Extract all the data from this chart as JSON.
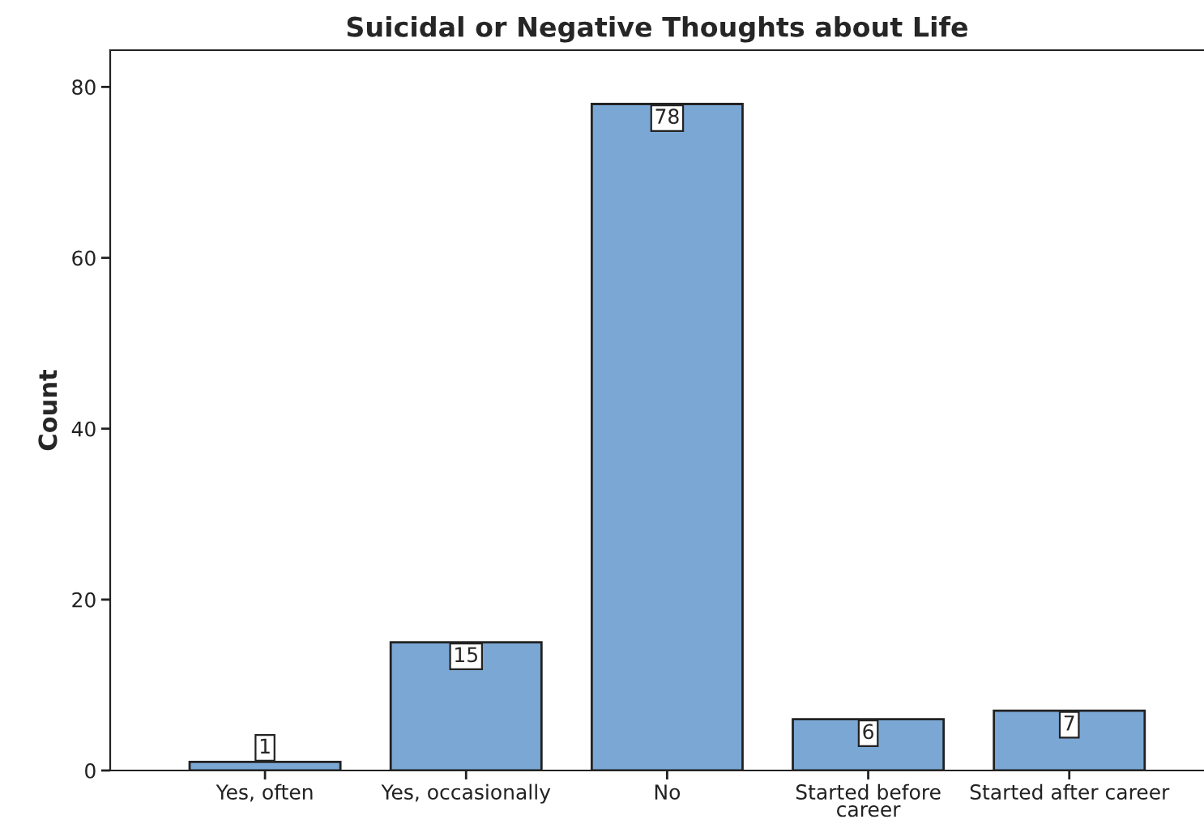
{
  "chart_data": {
    "type": "bar",
    "title": "Suicidal or Negative Thoughts about Life",
    "ylabel": "Count",
    "categories": [
      "Yes, often",
      "Yes, occasionally",
      "No",
      "Started before\ncareer",
      "Started after career"
    ],
    "values": [
      1,
      15,
      78,
      6,
      7
    ],
    "color": "#7ba7d5",
    "ylim": [
      0,
      84.3
    ],
    "yticks": [
      0,
      20,
      40,
      60,
      80
    ],
    "grid": false,
    "data_labels": true
  }
}
